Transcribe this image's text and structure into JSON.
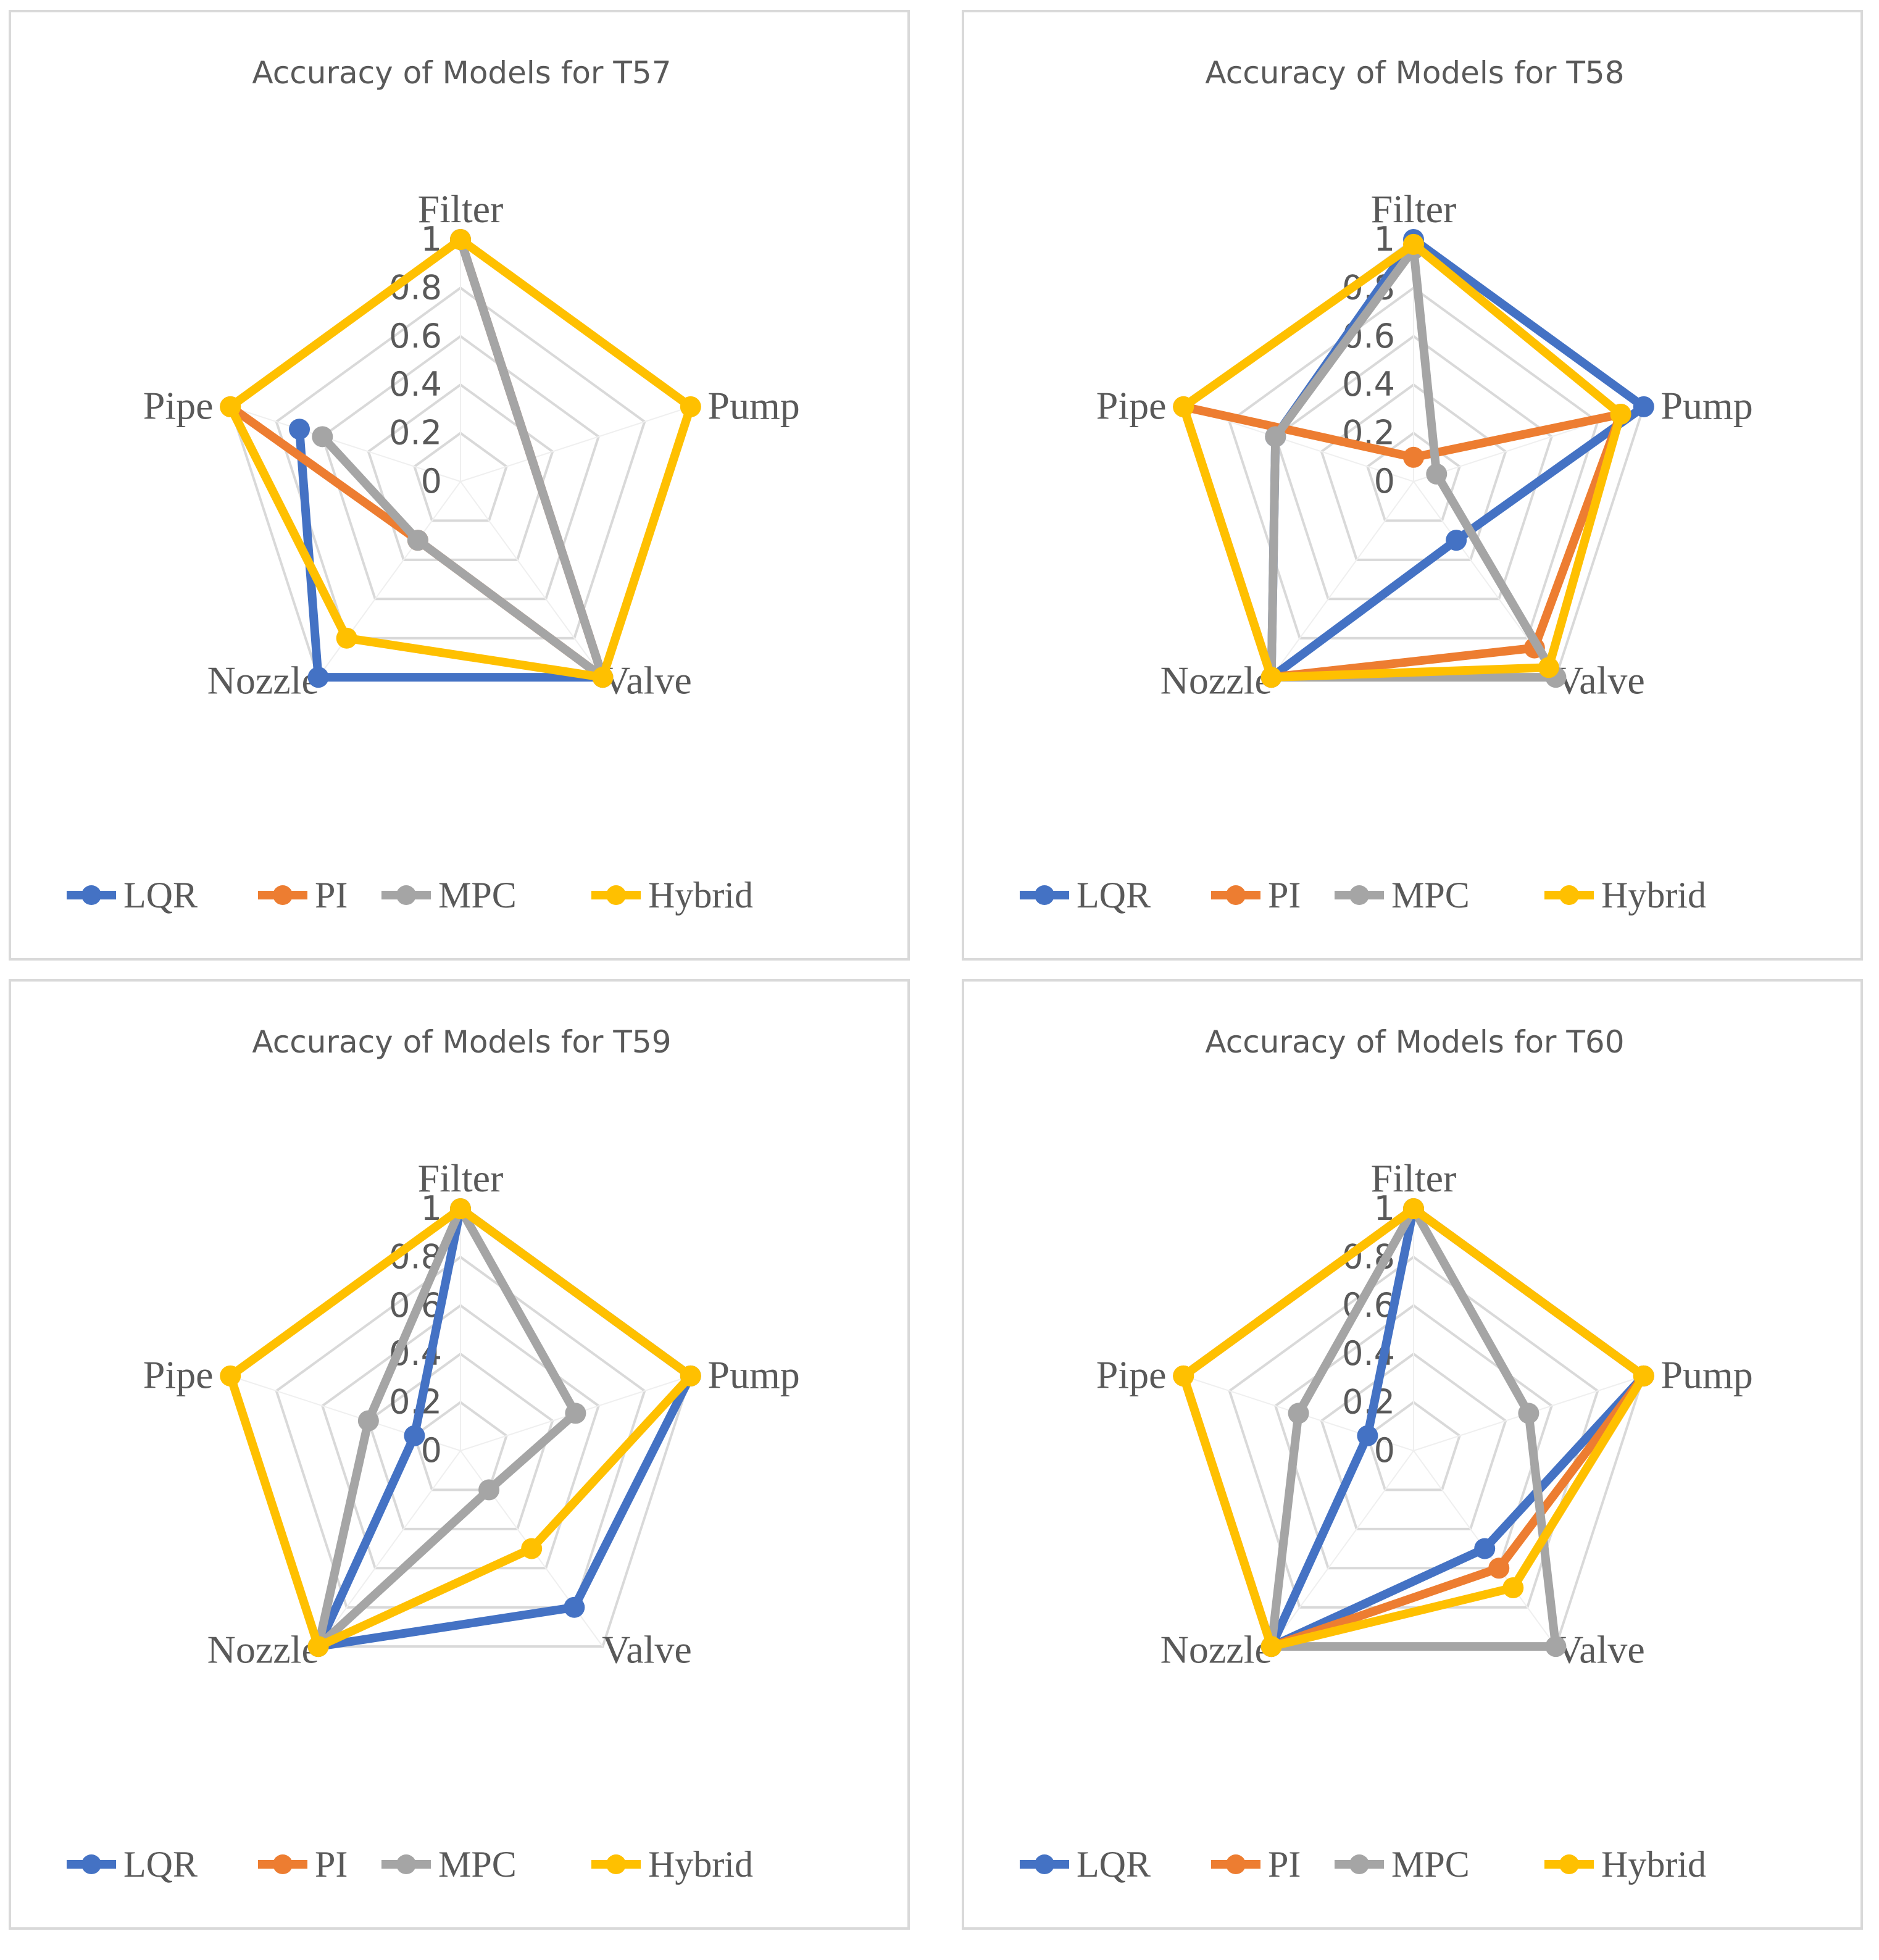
{
  "chart_data": [
    {
      "type": "radar",
      "title": "Accuracy of Models for T57",
      "categories": [
        "Filter",
        "Pump",
        "Valve",
        "Nozzle",
        "Pipe"
      ],
      "rlim": [
        0,
        1
      ],
      "ticks": [
        "0",
        "0.2",
        "0.4",
        "0.6",
        "0.8",
        "1"
      ],
      "tick_values": [
        0,
        0.2,
        0.4,
        0.6,
        0.8,
        1
      ],
      "legend_position": "bottom",
      "series": [
        {
          "name": "LQR",
          "color": "#4472c4",
          "values": [
            1,
            null,
            1,
            1,
            0.7
          ]
        },
        {
          "name": "PI",
          "color": "#ed7d31",
          "values": [
            1,
            null,
            1,
            0.3,
            1
          ]
        },
        {
          "name": "MPC",
          "color": "#a5a5a5",
          "values": [
            1,
            null,
            1,
            0.3,
            0.6
          ]
        },
        {
          "name": "Hybrid",
          "color": "#ffc000",
          "values": [
            1,
            1,
            1,
            0.8,
            1
          ]
        }
      ]
    },
    {
      "type": "radar",
      "title": "Accuracy of Models for T58",
      "categories": [
        "Filter",
        "Pump",
        "Valve",
        "Nozzle",
        "Pipe"
      ],
      "rlim": [
        0,
        1
      ],
      "ticks": [
        "0",
        "0.2",
        "0.4",
        "0.6",
        "0.8",
        "1"
      ],
      "tick_values": [
        0,
        0.2,
        0.4,
        0.6,
        0.8,
        1
      ],
      "legend_position": "bottom",
      "series": [
        {
          "name": "LQR",
          "color": "#4472c4",
          "values": [
            1,
            1,
            0.3,
            1,
            0.6
          ]
        },
        {
          "name": "PI",
          "color": "#ed7d31",
          "values": [
            0.1,
            0.9,
            0.85,
            1,
            1
          ]
        },
        {
          "name": "MPC",
          "color": "#a5a5a5",
          "values": [
            0.96,
            0.1,
            1,
            1,
            0.6
          ]
        },
        {
          "name": "Hybrid",
          "color": "#ffc000",
          "values": [
            0.98,
            0.9,
            0.95,
            1,
            1
          ]
        }
      ]
    },
    {
      "type": "radar",
      "title": "Accuracy of Models for T59",
      "categories": [
        "Filter",
        "Pump",
        "Valve",
        "Nozzle",
        "Pipe"
      ],
      "rlim": [
        0,
        1
      ],
      "ticks": [
        "0",
        "0.2",
        "0.4",
        "0.6",
        "0.8",
        "1"
      ],
      "tick_values": [
        0,
        0.2,
        0.4,
        0.6,
        0.8,
        1
      ],
      "legend_position": "bottom",
      "series": [
        {
          "name": "LQR",
          "color": "#4472c4",
          "values": [
            1,
            1,
            0.8,
            1,
            0.2
          ]
        },
        {
          "name": "PI",
          "color": "#ed7d31",
          "values": [
            null,
            null,
            null,
            null,
            null
          ]
        },
        {
          "name": "MPC",
          "color": "#a5a5a5",
          "values": [
            1,
            0.5,
            0.2,
            1,
            0.4
          ]
        },
        {
          "name": "Hybrid",
          "color": "#ffc000",
          "values": [
            1,
            1,
            0.5,
            1,
            1
          ]
        }
      ]
    },
    {
      "type": "radar",
      "title": "Accuracy of Models for T60",
      "categories": [
        "Filter",
        "Pump",
        "Valve",
        "Nozzle",
        "Pipe"
      ],
      "rlim": [
        0,
        1
      ],
      "ticks": [
        "0",
        "0.2",
        "0.4",
        "0.6",
        "0.8",
        "1"
      ],
      "tick_values": [
        0,
        0.2,
        0.4,
        0.6,
        0.8,
        1
      ],
      "legend_position": "bottom",
      "series": [
        {
          "name": "LQR",
          "color": "#4472c4",
          "values": [
            1,
            1,
            0.5,
            1,
            0.2
          ]
        },
        {
          "name": "PI",
          "color": "#ed7d31",
          "values": [
            1,
            1,
            0.6,
            1,
            1
          ]
        },
        {
          "name": "MPC",
          "color": "#a5a5a5",
          "values": [
            1,
            0.5,
            1,
            1,
            0.5
          ]
        },
        {
          "name": "Hybrid",
          "color": "#ffc000",
          "values": [
            1,
            1,
            0.7,
            1,
            1
          ]
        }
      ]
    }
  ]
}
